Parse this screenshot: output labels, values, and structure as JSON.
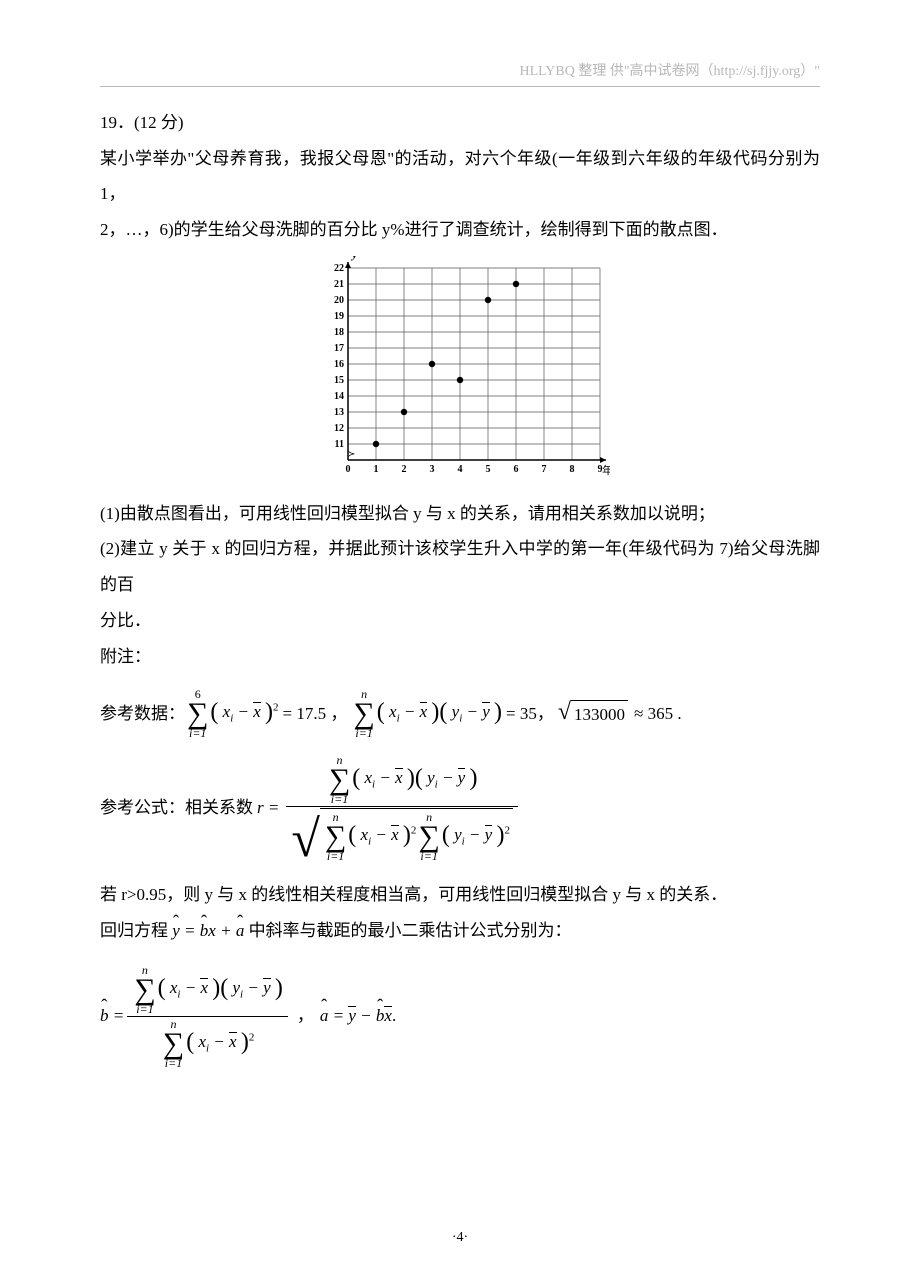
{
  "header": {
    "text": "HLLYBQ 整理    供\"高中试卷网（http://sj.fjjy.org）\""
  },
  "problem": {
    "number_line": "19．(12 分)",
    "line2": "某小学举办\"父母养育我，我报父母恩\"的活动，对六个年级(一年级到六年级的年级代码分别为 1，",
    "line3": "2，…，6)的学生给父母洗脚的百分比 y%进行了调查统计，绘制得到下面的散点图．",
    "q1": "(1)由散点图看出，可用线性回归模型拟合 y 与 x 的关系，请用相关系数加以说明；",
    "q2a": "(2)建立 y 关于 x 的回归方程，并据此预计该校学生升入中学的第一年(年级代码为 7)给父母洗脚的百",
    "q2b": "分比．",
    "note_label": "附注：",
    "ref_data_label": "参考数据：",
    "ref_data_eq1": "= 17.5 ，",
    "ref_data_eq2": "= 35，",
    "ref_data_eq3": "≈ 365 .",
    "sqrt_val": "133000",
    "ref_formula_label": "参考公式：相关系数",
    "r_threshold": "若 r>0.95，则 y 与 x 的线性相关程度相当高，可用线性回归模型拟合 y 与 x 的关系．",
    "reg_eq_label_a": "回归方程",
    "reg_eq_label_b": "中斜率与截距的最小二乘估计公式分别为："
  },
  "chart": {
    "type": "scatter",
    "xlabel": "年级代码 x",
    "ylabel": "y",
    "xlim": [
      0,
      9
    ],
    "ylim": [
      10,
      22
    ],
    "xticks": [
      0,
      1,
      2,
      3,
      4,
      5,
      6,
      7,
      8,
      9
    ],
    "yticks": [
      11,
      12,
      13,
      14,
      15,
      16,
      17,
      18,
      19,
      20,
      21,
      22
    ],
    "points": [
      {
        "x": 1,
        "y": 11
      },
      {
        "x": 2,
        "y": 13
      },
      {
        "x": 3,
        "y": 16
      },
      {
        "x": 4,
        "y": 15
      },
      {
        "x": 5,
        "y": 20
      },
      {
        "x": 6,
        "y": 21
      }
    ],
    "grid_color": "#555555",
    "point_color": "#000000",
    "point_radius": 3.2,
    "axis_color": "#000000",
    "font_size_ticks": 10,
    "font_size_label": 12,
    "bg": "#ffffff"
  },
  "page_number": "·4·"
}
